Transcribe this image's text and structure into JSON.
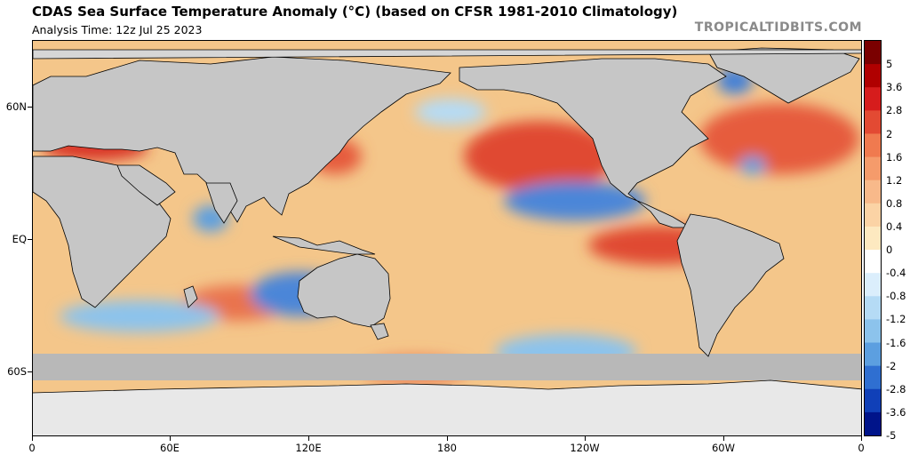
{
  "header": {
    "title": "CDAS Sea Surface Temperature Anomaly (°C) (based on CFSR 1981-2010 Climatology)",
    "subtitle": "Analysis Time: 12z Jul 25 2023",
    "credit": "TROPICALTIDBITS.COM"
  },
  "axes": {
    "y_labels": [
      "60N",
      "EQ",
      "60S"
    ],
    "x_labels": [
      "0",
      "60E",
      "120E",
      "180",
      "120W",
      "60W",
      "0"
    ]
  },
  "colorbar": {
    "labels": [
      "5",
      "3.6",
      "2.8",
      "2",
      "1.6",
      "1.2",
      "0.8",
      "0.4",
      "0",
      "-0.4",
      "-0.8",
      "-1.2",
      "-1.6",
      "-2",
      "-2.8",
      "-3.6",
      "-5"
    ],
    "colors": [
      "#7a0000",
      "#b00000",
      "#d61c1c",
      "#e34a33",
      "#f07a4f",
      "#f59b6b",
      "#f8b98a",
      "#fbd3a5",
      "#fde9c0",
      "#ffffff",
      "#dbeefc",
      "#b5dbf5",
      "#8cc3ec",
      "#5c9fe0",
      "#2f6fd1",
      "#1040b8",
      "#00148a"
    ]
  },
  "colors": {
    "land": "#c6c6c6",
    "ice": "#b8b8b8",
    "warm_bg": "#f4c68a",
    "warm_strong": "#e04a30",
    "cool": "#3f7fd8"
  }
}
